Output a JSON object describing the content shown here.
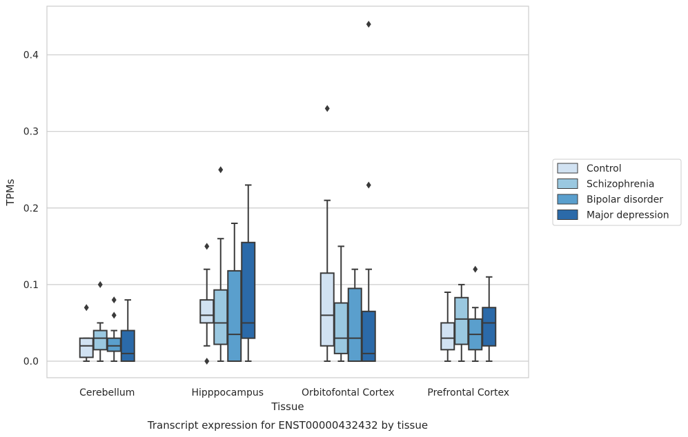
{
  "chart_data": {
    "type": "boxplot",
    "caption": "Transcript expression for ENST00000432432 by tissue",
    "xlabel": "Tissue",
    "ylabel": "TPMs",
    "ylim": [
      -0.021,
      0.465
    ],
    "yticks": [
      0.0,
      0.1,
      0.2,
      0.3,
      0.4
    ],
    "ytick_labels": [
      "0.0",
      "0.1",
      "0.2",
      "0.3",
      "0.4"
    ],
    "grid": "horizontal",
    "legend_position": "right",
    "categories": [
      "Cerebellum",
      "Hipppocampus",
      "Orbitofontal Cortex",
      "Prefrontal Cortex"
    ],
    "series": [
      {
        "name": "Control",
        "color": "#d1e2f2",
        "boxes": [
          {
            "q1": 0.005,
            "median": 0.02,
            "q3": 0.03,
            "whisker_low": 0.0,
            "whisker_high": 0.03,
            "outliers": [
              0.07
            ]
          },
          {
            "q1": 0.05,
            "median": 0.06,
            "q3": 0.08,
            "whisker_low": 0.02,
            "whisker_high": 0.12,
            "outliers": [
              0.15,
              0.0
            ]
          },
          {
            "q1": 0.02,
            "median": 0.06,
            "q3": 0.115,
            "whisker_low": 0.0,
            "whisker_high": 0.21,
            "outliers": [
              0.33
            ]
          },
          {
            "q1": 0.015,
            "median": 0.03,
            "q3": 0.05,
            "whisker_low": 0.0,
            "whisker_high": 0.09,
            "outliers": []
          }
        ]
      },
      {
        "name": "Schizophrenia",
        "color": "#9ac8e0",
        "boxes": [
          {
            "q1": 0.015,
            "median": 0.03,
            "q3": 0.04,
            "whisker_low": 0.0,
            "whisker_high": 0.05,
            "outliers": [
              0.1
            ]
          },
          {
            "q1": 0.022,
            "median": 0.05,
            "q3": 0.093,
            "whisker_low": 0.0,
            "whisker_high": 0.16,
            "outliers": [
              0.25
            ]
          },
          {
            "q1": 0.01,
            "median": 0.03,
            "q3": 0.076,
            "whisker_low": 0.0,
            "whisker_high": 0.15,
            "outliers": []
          },
          {
            "q1": 0.022,
            "median": 0.055,
            "q3": 0.083,
            "whisker_low": 0.0,
            "whisker_high": 0.1,
            "outliers": []
          }
        ]
      },
      {
        "name": "Bipolar disorder",
        "color": "#5a9fcd",
        "boxes": [
          {
            "q1": 0.013,
            "median": 0.02,
            "q3": 0.03,
            "whisker_low": 0.0,
            "whisker_high": 0.04,
            "outliers": [
              0.08,
              0.06
            ]
          },
          {
            "q1": 0.0,
            "median": 0.035,
            "q3": 0.118,
            "whisker_low": 0.0,
            "whisker_high": 0.18,
            "outliers": []
          },
          {
            "q1": 0.0,
            "median": 0.03,
            "q3": 0.095,
            "whisker_low": 0.0,
            "whisker_high": 0.12,
            "outliers": []
          },
          {
            "q1": 0.015,
            "median": 0.035,
            "q3": 0.055,
            "whisker_low": 0.0,
            "whisker_high": 0.07,
            "outliers": [
              0.12
            ]
          }
        ]
      },
      {
        "name": "Major depression",
        "color": "#2b6aa9",
        "boxes": [
          {
            "q1": 0.0,
            "median": 0.01,
            "q3": 0.04,
            "whisker_low": 0.0,
            "whisker_high": 0.08,
            "outliers": []
          },
          {
            "q1": 0.03,
            "median": 0.05,
            "q3": 0.155,
            "whisker_low": 0.0,
            "whisker_high": 0.23,
            "outliers": []
          },
          {
            "q1": 0.0,
            "median": 0.01,
            "q3": 0.065,
            "whisker_low": 0.0,
            "whisker_high": 0.12,
            "outliers": [
              0.44,
              0.23
            ]
          },
          {
            "q1": 0.02,
            "median": 0.05,
            "q3": 0.07,
            "whisker_low": 0.0,
            "whisker_high": 0.11,
            "outliers": []
          }
        ]
      }
    ]
  }
}
